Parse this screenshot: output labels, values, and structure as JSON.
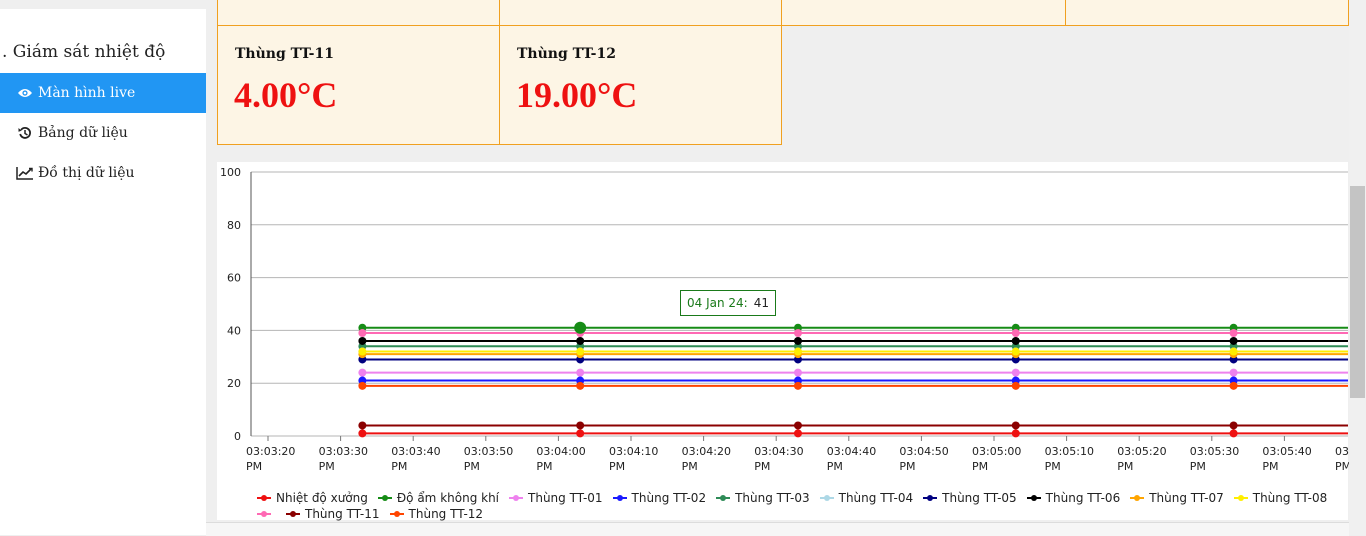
{
  "sidebar": {
    "title": ". Giám sát nhiệt độ",
    "items": [
      {
        "label": "Màn hình live",
        "icon": "eye-icon",
        "active": true
      },
      {
        "label": "Bảng dữ liệu",
        "icon": "history-icon",
        "active": false
      },
      {
        "label": "Đồ thị dữ liệu",
        "icon": "line-chart-icon",
        "active": false
      }
    ]
  },
  "cards": [
    {
      "title": "Thùng TT-11",
      "value": "4.00°C"
    },
    {
      "title": "Thùng TT-12",
      "value": "19.00°C"
    }
  ],
  "colors": {
    "accent": "#2196f3",
    "card_bg": "#fdf5e5",
    "card_border": "#f0a020",
    "value_red": "#ee1111"
  },
  "tooltip": {
    "label": "04 Jan 24:",
    "value": "41"
  },
  "chart_data": {
    "type": "line",
    "x": [
      "03:03:33 PM",
      "03:04:03 PM",
      "03:04:33 PM",
      "03:05:03 PM",
      "03:05:33 PM"
    ],
    "x_ticks": [
      [
        "03:03:20",
        "PM"
      ],
      [
        "03:03:30",
        "PM"
      ],
      [
        "03:03:40",
        "PM"
      ],
      [
        "03:03:50",
        "PM"
      ],
      [
        "03:04:00",
        "PM"
      ],
      [
        "03:04:10",
        "PM"
      ],
      [
        "03:04:20",
        "PM"
      ],
      [
        "03:04:30",
        "PM"
      ],
      [
        "03:04:40",
        "PM"
      ],
      [
        "03:04:50",
        "PM"
      ],
      [
        "03:05:00",
        "PM"
      ],
      [
        "03:05:10",
        "PM"
      ],
      [
        "03:05:20",
        "PM"
      ],
      [
        "03:05:30",
        "PM"
      ],
      [
        "03:05:40",
        "PM"
      ],
      [
        "03:",
        "PM"
      ]
    ],
    "x_range_seconds": [
      "03:03:20 PM",
      "03:05:50 PM"
    ],
    "y_ticks": [
      "0",
      "20",
      "40",
      "60",
      "80",
      "100"
    ],
    "ylim": [
      0,
      100
    ],
    "grid": true,
    "legend_position": "bottom",
    "series": [
      {
        "name": "Nhiệt độ xưởng",
        "color": "#ee1111",
        "values": [
          1,
          1,
          1,
          1,
          1
        ]
      },
      {
        "name": "Độ ẩm không khí",
        "color": "#168c16",
        "values": [
          41,
          41,
          41,
          41,
          41
        ]
      },
      {
        "name": "Thùng TT-01",
        "color": "#ee82ee",
        "values": [
          24,
          24,
          24,
          24,
          24
        ]
      },
      {
        "name": "Thùng TT-02",
        "color": "#1a1aff",
        "values": [
          21,
          21,
          21,
          21,
          21
        ]
      },
      {
        "name": "Thùng TT-03",
        "color": "#2e8b57",
        "values": [
          34,
          34,
          34,
          34,
          34
        ]
      },
      {
        "name": "Thùng TT-04",
        "color": "#add8e6",
        "values": [
          32,
          32,
          32,
          32,
          32
        ]
      },
      {
        "name": "Thùng TT-05",
        "color": "#000080",
        "values": [
          29,
          29,
          29,
          29,
          29
        ]
      },
      {
        "name": "Thùng TT-06",
        "color": "#000000",
        "values": [
          36,
          36,
          36,
          36,
          36
        ]
      },
      {
        "name": "Thùng TT-07",
        "color": "#ffa500",
        "values": [
          31,
          31,
          31,
          31,
          31
        ]
      },
      {
        "name": "Thùng TT-08",
        "color": "#ffee00",
        "values": [
          32,
          32,
          32,
          32,
          32
        ]
      },
      {
        "name": "",
        "color": "#ff69b4",
        "values": [
          39,
          39,
          39,
          39,
          39
        ]
      },
      {
        "name": "Thùng TT-11",
        "color": "#8b0000",
        "values": [
          4,
          4,
          4,
          4,
          4
        ]
      },
      {
        "name": "Thùng TT-12",
        "color": "#ff4500",
        "values": [
          19,
          19,
          19,
          19,
          19
        ]
      }
    ]
  }
}
